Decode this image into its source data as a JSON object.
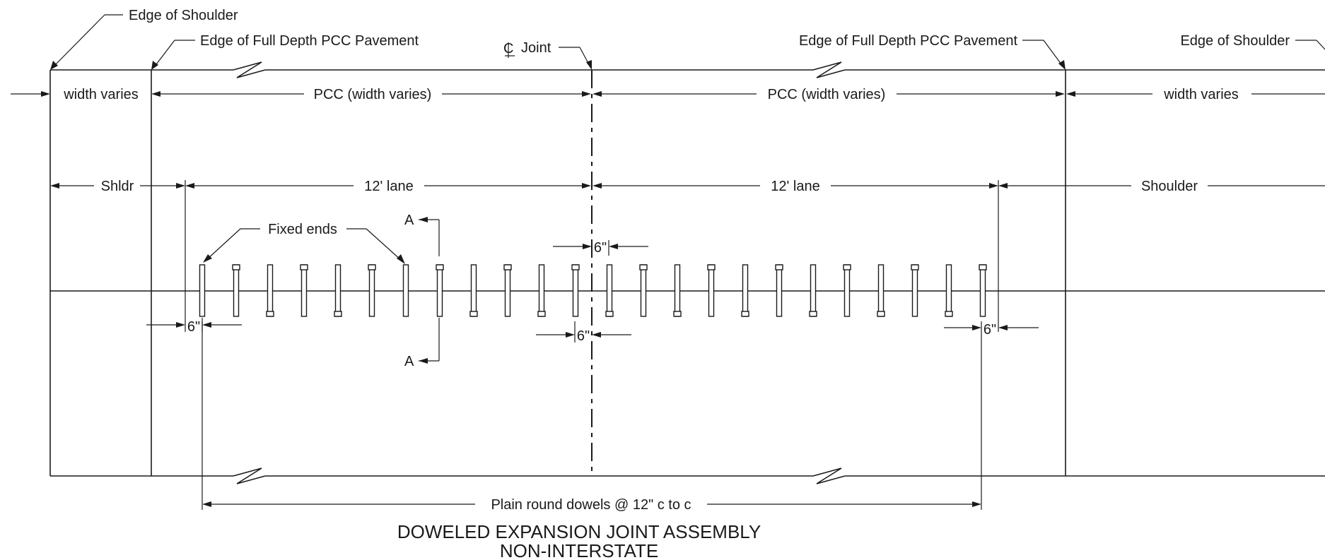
{
  "labels": {
    "edge_shoulder_left": "Edge of Shoulder",
    "edge_pcc_left": "Edge of Full Depth PCC Pavement",
    "joint": "Joint",
    "edge_pcc_right": "Edge of Full Depth PCC Pavement",
    "edge_shoulder_right": "Edge of Shoulder",
    "width_varies_left": "width varies",
    "pcc_width_left": "PCC (width varies)",
    "pcc_width_right": "PCC (width varies)",
    "width_varies_right": "width varies",
    "shldr": "Shldr",
    "lane_left": "12' lane",
    "lane_right": "12' lane",
    "shoulder": "Shoulder",
    "fixed_ends": "Fixed ends",
    "section_top": "A",
    "section_bottom": "A",
    "dim_6_top": "6\"",
    "dim_6_left": "6\"",
    "dim_6_center": "6\"",
    "dim_6_right": "6\"",
    "dowels": "Plain round dowels @ 12\" c to c"
  },
  "title": {
    "line1": "DOWELED EXPANSION JOINT ASSEMBLY",
    "line2": "NON-INTERSTATE"
  },
  "dowel_assembly": {
    "dowel_count": 24,
    "spacing": "12\" c to c"
  }
}
